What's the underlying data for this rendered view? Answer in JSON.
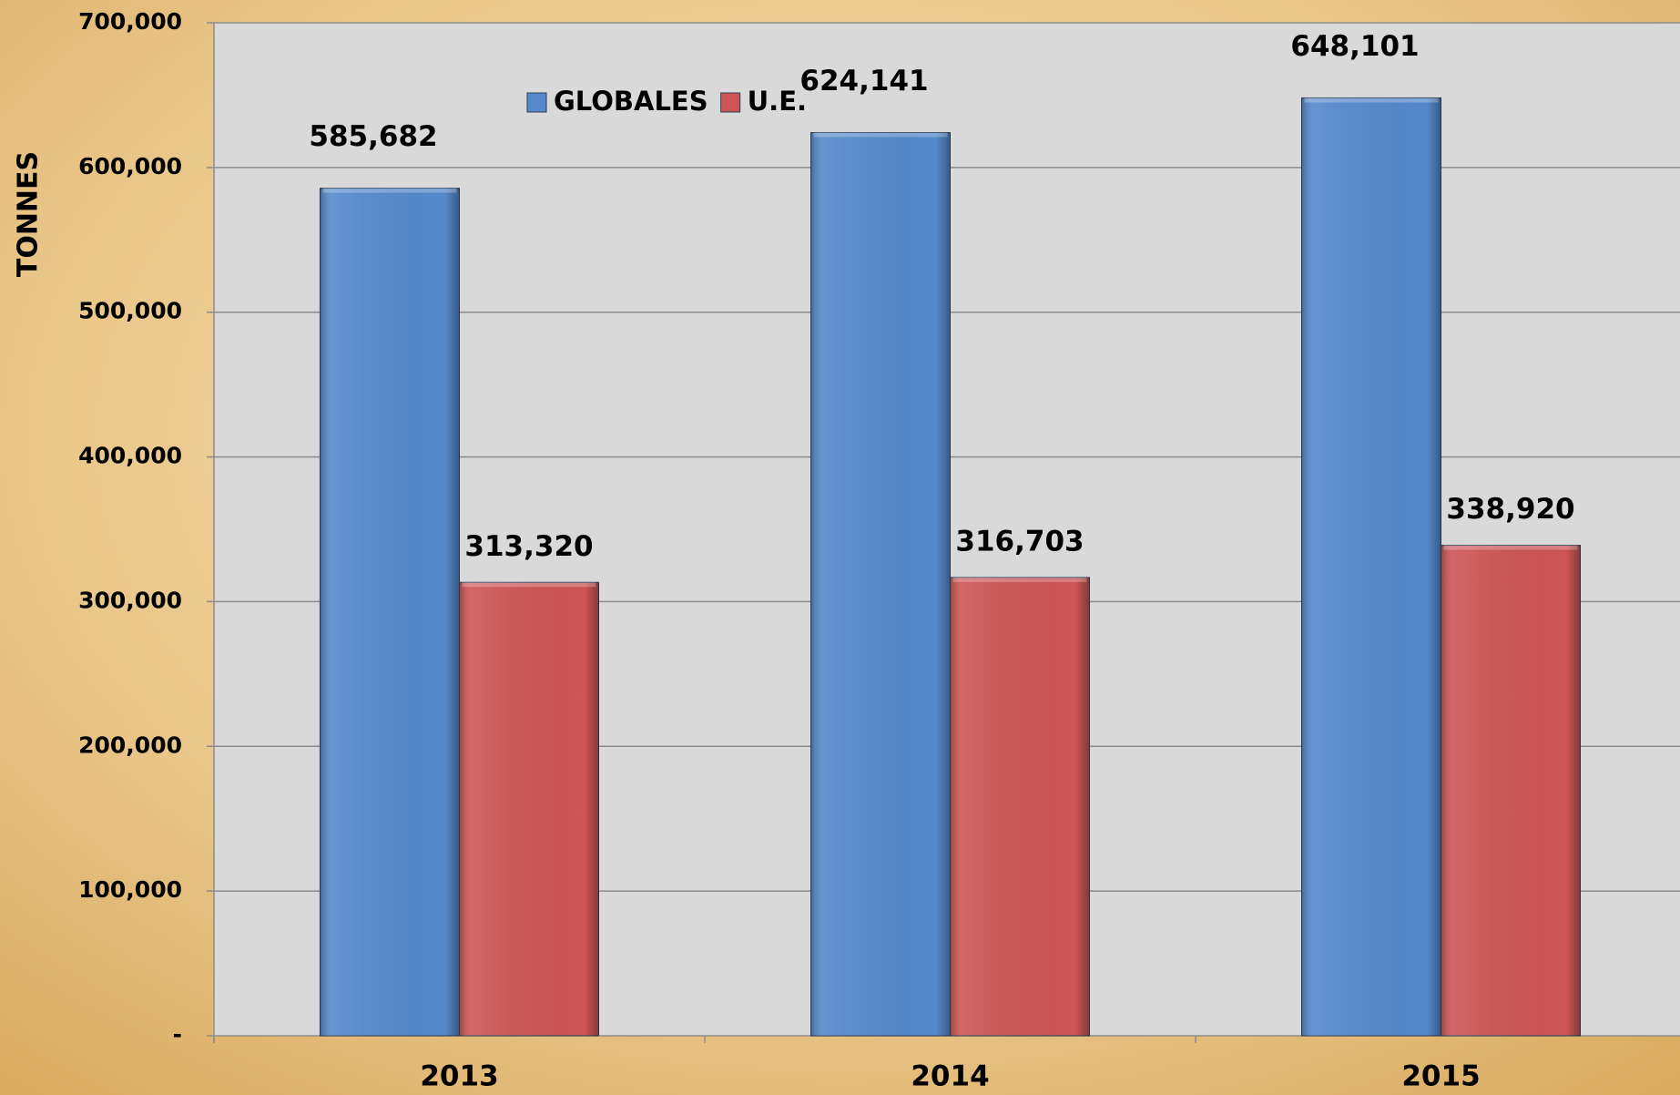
{
  "chart_data": {
    "type": "bar",
    "axis_label_y": "TONNES",
    "categories": [
      "2013",
      "2014",
      "2015"
    ],
    "series": [
      {
        "name": "GLOBALES",
        "color": "#5589cc",
        "values": [
          585682,
          624141,
          648101
        ],
        "value_labels": [
          "585,682",
          "624,141",
          "648,101"
        ]
      },
      {
        "name": "U.E.",
        "color": "#cd5555",
        "values": [
          313320,
          316703,
          338920
        ],
        "value_labels": [
          "313,320",
          "316,703",
          "338,920"
        ]
      }
    ],
    "ylim": [
      0,
      700000
    ],
    "yticks": [
      {
        "value": 0,
        "label": "-"
      },
      {
        "value": 100000,
        "label": "100,000"
      },
      {
        "value": 200000,
        "label": "200,000"
      },
      {
        "value": 300000,
        "label": "300,000"
      },
      {
        "value": 400000,
        "label": "400,000"
      },
      {
        "value": 500000,
        "label": "500,000"
      },
      {
        "value": 600000,
        "label": "600,000"
      },
      {
        "value": 700000,
        "label": "700,000"
      }
    ],
    "grid": true,
    "legend": "top"
  }
}
